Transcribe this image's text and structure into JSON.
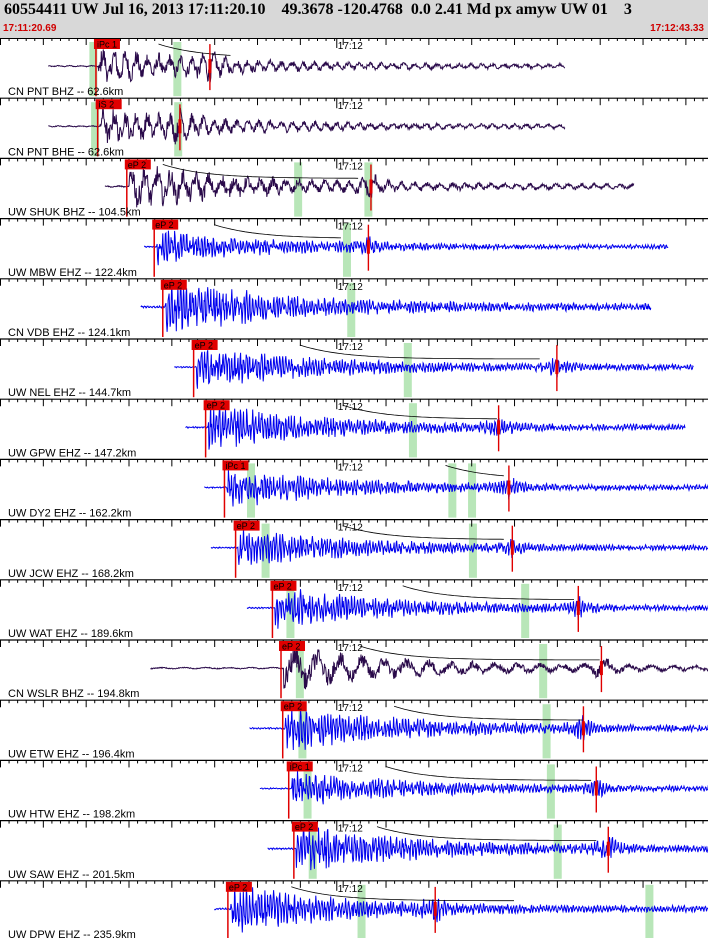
{
  "header": {
    "title": "60554411 UW Jul 16, 2013 17:11:20.10    49.3678 -120.4768  0.0 2.41 Md px amyw UW 01    3",
    "start_time": "17:11:20.69",
    "end_time": "17:12:43.33",
    "minute_label": "17:12"
  },
  "colors": {
    "background": "#ffffff",
    "header_bg": "#d8d8d8",
    "time_text": "#d00000",
    "broadband_trace": "#2a0a4a",
    "short_period_trace": "#0000ee",
    "pick_box": "#e00000",
    "pick_line": "#e00000",
    "window_band": "#b8e6b8",
    "decay_curve": "#000000"
  },
  "chart_data": {
    "type": "seismogram",
    "time_range": [
      "17:11:20.69",
      "17:12:43.33"
    ],
    "traces": [
      {
        "label": "CN PNT BHZ -- 62.6km",
        "color": "broadband",
        "pick": "iPc 1",
        "p_time": 11.2,
        "onset": 11.6,
        "end": 66,
        "amp": 17,
        "period": 1.3,
        "s_time": 24.5,
        "bands": [
          10.9,
          20.7
        ],
        "decay": [
          18.5,
          27
        ]
      },
      {
        "label": "CN PNT BHE -- 62.6km",
        "color": "broadband",
        "pick": "iS 2",
        "p_time": 11.4,
        "onset": 11.6,
        "end": 66,
        "amp": 17,
        "period": 1.3,
        "s_time": 21.0,
        "bands": [
          11.1,
          20.8
        ],
        "decay": null
      },
      {
        "label": "UW SHUK BHZ -- 104.5km",
        "color": "broadband",
        "pick": "eP 2",
        "p_time": 14.8,
        "onset": 18.2,
        "end": 74,
        "amp": 21,
        "period": 1.5,
        "s_time": 43.3,
        "bands": [
          34.8,
          43.0
        ],
        "decay": [
          19,
          42
        ]
      },
      {
        "label": "UW MBW EHZ -- 122.4km",
        "color": "short",
        "pick": "eP 2",
        "p_time": 18.0,
        "onset": 22.8,
        "end": 78,
        "amp": 15,
        "period": 0.35,
        "s_time": 43.0,
        "bands": [
          40.5
        ],
        "decay": [
          25,
          40
        ]
      },
      {
        "label": "CN VDB EHZ -- 124.1km",
        "color": "short",
        "pick": "eP 2",
        "p_time": 19.0,
        "onset": 22.4,
        "end": 76,
        "amp": 24,
        "period": 0.35,
        "s_time": null,
        "bands": [
          41.0
        ],
        "decay": null
      },
      {
        "label": "UW NEL EHZ -- 144.7km",
        "color": "short",
        "pick": "eP 2",
        "p_time": 22.6,
        "onset": 26.3,
        "end": 81,
        "amp": 19,
        "period": 0.35,
        "s_time": 65.0,
        "bands": [
          47.6
        ],
        "decay": [
          35,
          63
        ]
      },
      {
        "label": "UW GPW EHZ -- 147.2km",
        "color": "short",
        "pick": "eP 2",
        "p_time": 24.0,
        "onset": 27.6,
        "end": 80,
        "amp": 20,
        "period": 0.35,
        "s_time": 58.2,
        "bands": [
          48.2
        ],
        "decay": [
          40,
          58
        ]
      },
      {
        "label": "UW DY2 EHZ -- 162.2km",
        "color": "short",
        "pick": "iPc 1",
        "p_time": 26.2,
        "onset": 29.8,
        "end": 84,
        "amp": 18,
        "period": 0.35,
        "s_time": 59.4,
        "bands": [
          29.3,
          52.8,
          55.1
        ],
        "decay": [
          52,
          59
        ]
      },
      {
        "label": "UW JCW EHZ -- 168.2km",
        "color": "short",
        "pick": "eP 2",
        "p_time": 27.5,
        "onset": 30.6,
        "end": 85,
        "amp": 17,
        "period": 0.35,
        "s_time": 59.8,
        "bands": [
          31.0,
          55.2
        ],
        "decay": [
          40,
          59
        ]
      },
      {
        "label": "UW WAT EHZ -- 189.6km",
        "color": "short",
        "pick": "eP 2",
        "p_time": 31.8,
        "onset": 34.8,
        "end": 89,
        "amp": 18,
        "period": 0.35,
        "s_time": 67.5,
        "bands": [
          33.9,
          61.3
        ],
        "decay": [
          47,
          67
        ]
      },
      {
        "label": "CN WSLR BHZ -- 194.8km",
        "color": "broadband",
        "pick": "eP 2",
        "p_time": 32.8,
        "onset": 23.5,
        "end": 90,
        "amp": 20,
        "period": 2.6,
        "s_time": 70.2,
        "bands": [
          35.0,
          63.4
        ],
        "decay": [
          42,
          70
        ]
      },
      {
        "label": "UW ETW EHZ -- 196.4km",
        "color": "short",
        "pick": "eP 2",
        "p_time": 33.0,
        "onset": 35.1,
        "end": 90,
        "amp": 20,
        "period": 0.35,
        "s_time": 68.1,
        "bands": [
          35.3,
          63.8
        ],
        "decay": [
          46,
          68
        ]
      },
      {
        "label": "UW HTW EHZ -- 198.2km",
        "color": "short",
        "pick": "iPc 1",
        "p_time": 33.7,
        "onset": 36.3,
        "end": 90,
        "amp": 16,
        "period": 0.35,
        "s_time": 69.6,
        "bands": [
          35.9,
          64.3
        ],
        "decay": [
          45,
          69
        ]
      },
      {
        "label": "UW SAW EHZ -- 201.5km",
        "color": "short",
        "pick": "eP 2",
        "p_time": 34.3,
        "onset": 37.2,
        "end": 91,
        "amp": 21,
        "period": 0.35,
        "s_time": 71.0,
        "bands": [
          36.5,
          65.1
        ],
        "decay": [
          44,
          70
        ]
      },
      {
        "label": "UW DPW EHZ -- 235.9km",
        "color": "short",
        "pick": "eP 2",
        "p_time": 26.6,
        "onset": 31.0,
        "end": 88,
        "amp": 21,
        "period": 0.35,
        "s_time": 50.8,
        "bands": [
          42.2,
          75.8
        ],
        "decay": [
          34,
          60
        ]
      }
    ]
  }
}
